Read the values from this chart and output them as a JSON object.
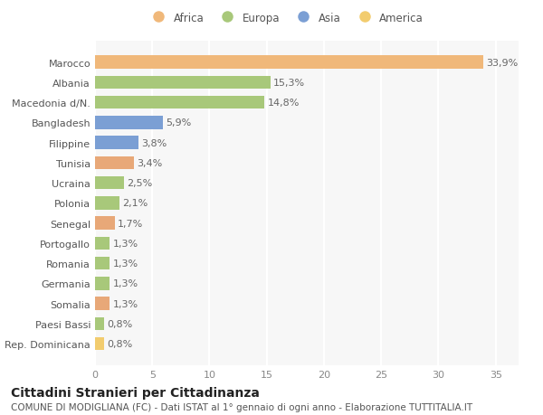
{
  "categories": [
    "Rep. Dominicana",
    "Paesi Bassi",
    "Somalia",
    "Germania",
    "Romania",
    "Portogallo",
    "Senegal",
    "Polonia",
    "Ucraina",
    "Tunisia",
    "Filippine",
    "Bangladesh",
    "Macedonia d/N.",
    "Albania",
    "Marocco"
  ],
  "values": [
    0.8,
    0.8,
    1.3,
    1.3,
    1.3,
    1.3,
    1.7,
    2.1,
    2.5,
    3.4,
    3.8,
    5.9,
    14.8,
    15.3,
    33.9
  ],
  "labels": [
    "0,8%",
    "0,8%",
    "1,3%",
    "1,3%",
    "1,3%",
    "1,3%",
    "1,7%",
    "2,1%",
    "2,5%",
    "3,4%",
    "3,8%",
    "5,9%",
    "14,8%",
    "15,3%",
    "33,9%"
  ],
  "colors": [
    "#f2cc6e",
    "#a8c87a",
    "#e8a878",
    "#a8c87a",
    "#a8c87a",
    "#a8c87a",
    "#e8a878",
    "#a8c87a",
    "#a8c87a",
    "#e8a878",
    "#7b9fd4",
    "#7b9fd4",
    "#a8c87a",
    "#a8c87a",
    "#f0b87a"
  ],
  "legend_labels": [
    "Africa",
    "Europa",
    "Asia",
    "America"
  ],
  "legend_colors": [
    "#f0b87a",
    "#a8c87a",
    "#7b9fd4",
    "#f2cc6e"
  ],
  "title1": "Cittadini Stranieri per Cittadinanza",
  "title2": "COMUNE DI MODIGLIANA (FC) - Dati ISTAT al 1° gennaio di ogni anno - Elaborazione TUTTITALIA.IT",
  "xlim": [
    0,
    37
  ],
  "xticks": [
    0,
    5,
    10,
    15,
    20,
    25,
    30,
    35
  ],
  "background_color": "#ffffff",
  "bar_height": 0.65,
  "label_fontsize": 8,
  "tick_fontsize": 8,
  "ylabel_fontsize": 8,
  "title1_fontsize": 10,
  "title2_fontsize": 7.5
}
